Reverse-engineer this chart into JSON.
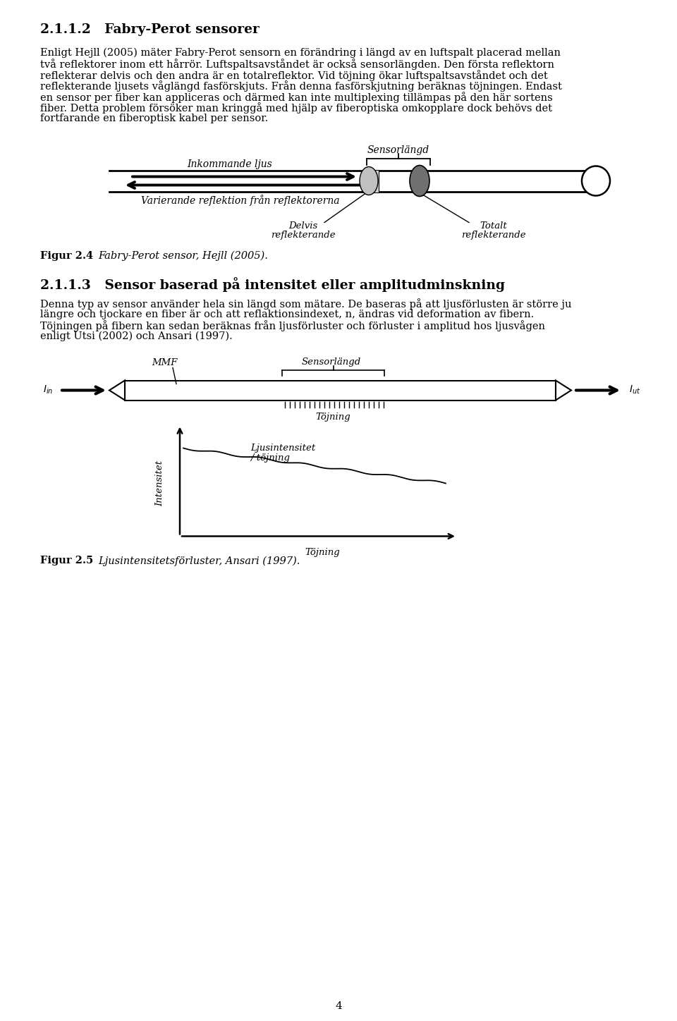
{
  "bg_color": "#ffffff",
  "page_number": "4",
  "section1_title": "2.1.1.2   Fabry-Perot sensorer",
  "para1_lines": [
    "Enligt Hejll (2005) mäter Fabry-Perot sensorn en förändring i längd av en luftspalt placerad mellan",
    "två reflektorer inom ett hårrör. Luftspaltsavståndet är också sensorlängden. Den första reflektorn",
    "reflekterar delvis och den andra är en totalreflektor. Vid töjning ökar luftspaltsavståndet och det",
    "reflekterande ljusets våglängd fasförskjuts. Från denna fasförskjutning beräknas töjningen. Endast",
    "en sensor per fiber kan appliceras och därmed kan inte multiplexing tillämpas på den här sortens",
    "fiber. Detta problem försöker man kringgå med hjälp av fiberoptiska omkopplare dock behövs det",
    "fortfarande en fiberoptisk kabel per sensor."
  ],
  "fig24_label_bold": "Figur 2.4",
  "fig24_label_italic": "Fabry-Perot sensor, Hejll (2005).",
  "section2_title": "2.1.1.3   Sensor baserad på intensitet eller amplitudminskning",
  "para2_lines": [
    "Denna typ av sensor använder hela sin längd som mätare. De baseras på att ljusförlusten är större ju",
    "längre och tjockare en fiber är och att reflaktionsindexet, n, ändras vid deformation av fibern.",
    "Töjningen på fibern kan sedan beräknas från ljusförluster och förluster i amplitud hos ljusvågen",
    "enligt Utsi (2002) och Ansari (1997)."
  ],
  "fig25_label_bold": "Figur 2.5",
  "fig25_label_italic": "Ljusintensitetsförluster, Ansari (1997)."
}
